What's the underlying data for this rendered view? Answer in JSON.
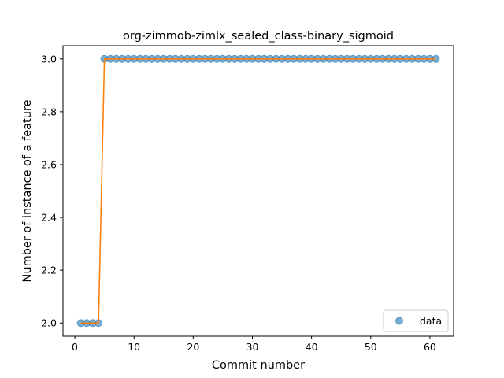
{
  "chart_data": {
    "type": "scatter",
    "title": "org-zimmob-zimlx_sealed_class-binary_sigmoid",
    "xlabel": "Commit number",
    "ylabel": "Number of instance of a feature",
    "xlim": [
      -2,
      64
    ],
    "ylim": [
      1.95,
      3.05
    ],
    "x_ticks": [
      0,
      10,
      20,
      30,
      40,
      50,
      60
    ],
    "y_ticks": [
      2.0,
      2.2,
      2.4,
      2.6,
      2.8,
      3.0
    ],
    "x_tick_labels": [
      "0",
      "10",
      "20",
      "30",
      "40",
      "50",
      "60"
    ],
    "y_tick_labels": [
      "2.0",
      "2.2",
      "2.4",
      "2.6",
      "2.8",
      "3.0"
    ],
    "grid": false,
    "legend": {
      "position": "lower-right",
      "entries": [
        "data"
      ]
    },
    "series": [
      {
        "name": "data",
        "kind": "scatter",
        "color": "#1f77b4",
        "x": [
          1,
          2,
          3,
          4,
          5,
          6,
          7,
          8,
          9,
          10,
          11,
          12,
          13,
          14,
          15,
          16,
          17,
          18,
          19,
          20,
          21,
          22,
          23,
          24,
          25,
          26,
          27,
          28,
          29,
          30,
          31,
          32,
          33,
          34,
          35,
          36,
          37,
          38,
          39,
          40,
          41,
          42,
          43,
          44,
          45,
          46,
          47,
          48,
          49,
          50,
          51,
          52,
          53,
          54,
          55,
          56,
          57,
          58,
          59,
          60,
          61
        ],
        "y": [
          2,
          2,
          2,
          2,
          3,
          3,
          3,
          3,
          3,
          3,
          3,
          3,
          3,
          3,
          3,
          3,
          3,
          3,
          3,
          3,
          3,
          3,
          3,
          3,
          3,
          3,
          3,
          3,
          3,
          3,
          3,
          3,
          3,
          3,
          3,
          3,
          3,
          3,
          3,
          3,
          3,
          3,
          3,
          3,
          3,
          3,
          3,
          3,
          3,
          3,
          3,
          3,
          3,
          3,
          3,
          3,
          3,
          3,
          3,
          3,
          3
        ]
      },
      {
        "kind": "line",
        "color": "#ff7f0e",
        "x": [
          1,
          2,
          3,
          4,
          5,
          6,
          7,
          8,
          9,
          10,
          11,
          12,
          13,
          14,
          15,
          16,
          17,
          18,
          19,
          20,
          21,
          22,
          23,
          24,
          25,
          26,
          27,
          28,
          29,
          30,
          31,
          32,
          33,
          34,
          35,
          36,
          37,
          38,
          39,
          40,
          41,
          42,
          43,
          44,
          45,
          46,
          47,
          48,
          49,
          50,
          51,
          52,
          53,
          54,
          55,
          56,
          57,
          58,
          59,
          60,
          61
        ],
        "y": [
          2,
          2,
          2,
          2,
          3,
          3,
          3,
          3,
          3,
          3,
          3,
          3,
          3,
          3,
          3,
          3,
          3,
          3,
          3,
          3,
          3,
          3,
          3,
          3,
          3,
          3,
          3,
          3,
          3,
          3,
          3,
          3,
          3,
          3,
          3,
          3,
          3,
          3,
          3,
          3,
          3,
          3,
          3,
          3,
          3,
          3,
          3,
          3,
          3,
          3,
          3,
          3,
          3,
          3,
          3,
          3,
          3,
          3,
          3,
          3,
          3
        ]
      }
    ]
  }
}
